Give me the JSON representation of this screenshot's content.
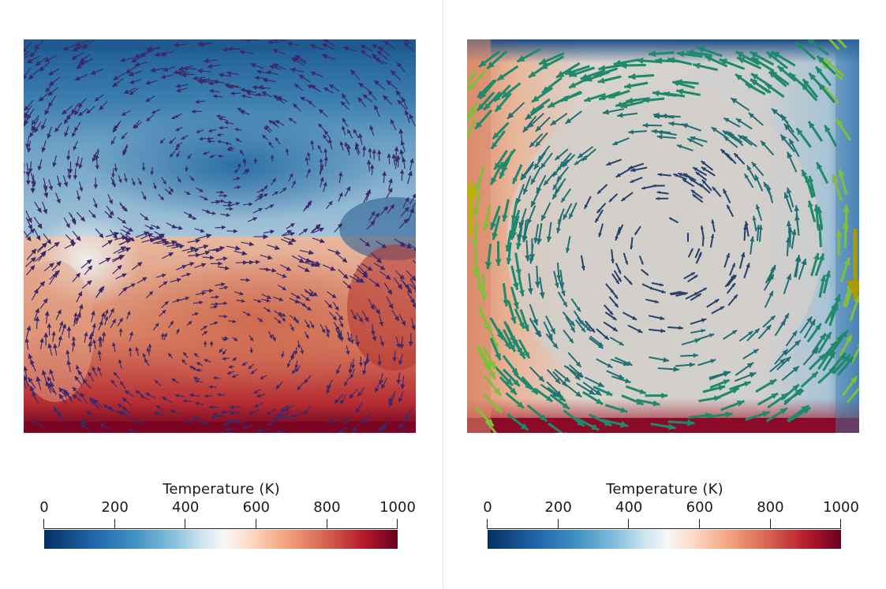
{
  "panels": [
    {
      "id": "left",
      "colorbar": {
        "title": "Temperature (K)",
        "ticks": [
          "0",
          "200",
          "400",
          "600",
          "800",
          "1000"
        ],
        "min": 0,
        "max": 1000
      },
      "glyph_color": "#3b2a6b",
      "cells": "two counter-rotating rolls"
    },
    {
      "id": "right",
      "colorbar": {
        "title": "Temperature (K)",
        "ticks": [
          "0",
          "200",
          "400",
          "600",
          "800",
          "1000"
        ],
        "min": 0,
        "max": 1000
      },
      "glyph_color": "#1f7a6b",
      "cells": "single roll"
    }
  ],
  "colormap": [
    "#053061",
    "#2166ac",
    "#92c5de",
    "#f7f7f7",
    "#f4a582",
    "#b2182b",
    "#67001f"
  ]
}
